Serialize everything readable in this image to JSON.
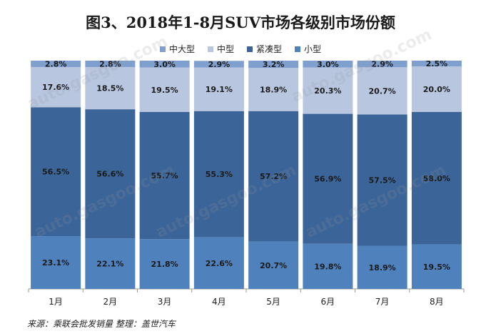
{
  "chart_data": {
    "type": "bar",
    "stacked": true,
    "title": "图3、2018年1-8月SUV市场各级别市场份额",
    "categories": [
      "1月",
      "2月",
      "3月",
      "4月",
      "5月",
      "6月",
      "7月",
      "8月"
    ],
    "series": [
      {
        "name": "小型",
        "color": "#4f81bd",
        "values": [
          23.1,
          22.1,
          21.8,
          22.6,
          20.7,
          19.8,
          18.9,
          19.5
        ],
        "labels": [
          "23.1%",
          "22.1%",
          "21.8%",
          "22.6%",
          "20.7%",
          "19.8%",
          "18.9%",
          "19.5%"
        ]
      },
      {
        "name": "紧凑型",
        "color": "#3b6498",
        "values": [
          56.5,
          56.6,
          55.7,
          55.3,
          57.2,
          56.9,
          57.5,
          58.0
        ],
        "labels": [
          "56.5%",
          "56.6%",
          "55.7%",
          "55.3%",
          "57.2%",
          "56.9%",
          "57.5%",
          "58.0%"
        ]
      },
      {
        "name": "中型",
        "color": "#b8c6e0",
        "values": [
          17.6,
          18.5,
          19.5,
          19.1,
          18.9,
          20.3,
          20.7,
          20.0
        ],
        "labels": [
          "17.6%",
          "18.5%",
          "19.5%",
          "19.1%",
          "18.9%",
          "20.3%",
          "20.7%",
          "20.0%"
        ]
      },
      {
        "name": "中大型",
        "color": "#7f9fcf",
        "values": [
          2.8,
          2.8,
          3.0,
          2.9,
          3.2,
          3.0,
          2.9,
          2.5
        ],
        "labels": [
          "2.8%",
          "2.8%",
          "3.0%",
          "2.9%",
          "3.2%",
          "3.0%",
          "2.9%",
          "2.5%"
        ]
      }
    ],
    "legend_order": [
      "中大型",
      "中型",
      "紧凑型",
      "小型"
    ],
    "legend": "top",
    "ylim": [
      0,
      100
    ],
    "grid": false
  },
  "source_note": "来源：乘联会批发销量   整理：盖世汽车",
  "watermark": "auto.gasgoo.com"
}
